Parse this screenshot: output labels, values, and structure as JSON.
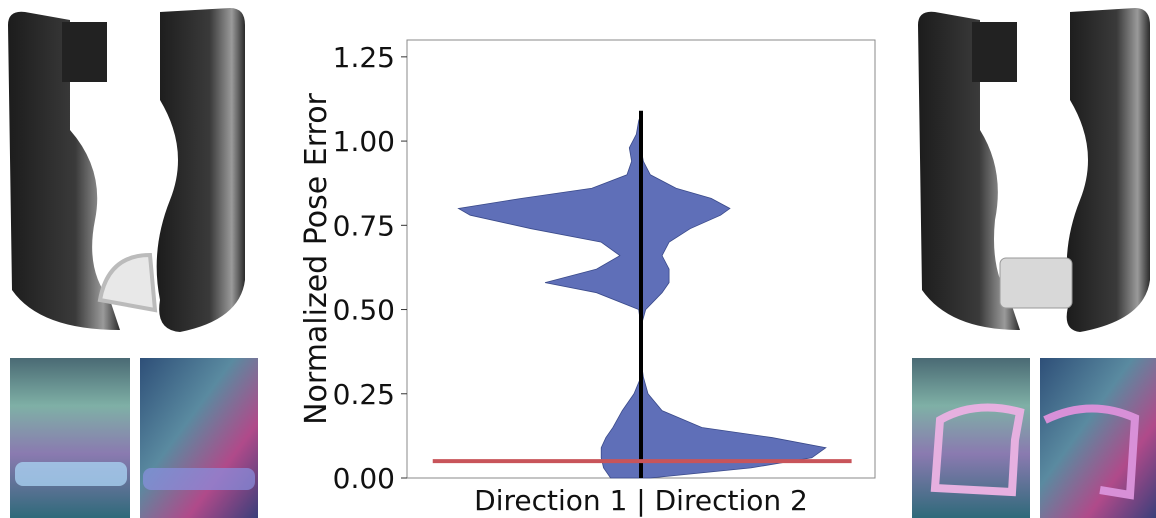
{
  "chart_data": {
    "type": "violin",
    "ylabel": "Normalized Pose Error",
    "xlabel": "Direction 1 | Direction 2",
    "ylim": [
      0,
      1.3
    ],
    "yticks": [
      {
        "value": 0,
        "label": "0.00"
      },
      {
        "value": 0.25,
        "label": "0.25"
      },
      {
        "value": 0.5,
        "label": "0.50"
      },
      {
        "value": 0.75,
        "label": "0.75"
      },
      {
        "value": 1,
        "label": "1.00"
      },
      {
        "value": 1.25,
        "label": "1.25"
      }
    ],
    "xlim": [
      -1,
      1
    ],
    "violin": {
      "color": "#5f6fb8",
      "y": [
        0,
        0.03,
        0.06,
        0.09,
        0.12,
        0.15,
        0.2,
        0.25,
        0.3,
        0.35,
        0.45,
        0.5,
        0.55,
        0.58,
        0.62,
        0.66,
        0.7,
        0.74,
        0.78,
        0.8,
        0.83,
        0.86,
        0.9,
        0.94,
        0.98,
        1.02,
        1.06,
        1.08
      ],
      "left": [
        0.13,
        0.16,
        0.17,
        0.17,
        0.15,
        0.12,
        0.08,
        0.03,
        0,
        0,
        0,
        0.01,
        0.19,
        0.41,
        0.19,
        0.09,
        0.17,
        0.47,
        0.73,
        0.78,
        0.51,
        0.21,
        0.06,
        0.04,
        0.05,
        0.02,
        0.01,
        0
      ],
      "right": [
        0.04,
        0.47,
        0.73,
        0.79,
        0.56,
        0.26,
        0.09,
        0.03,
        0.01,
        0,
        0,
        0.02,
        0.09,
        0.12,
        0.12,
        0.09,
        0.12,
        0.21,
        0.34,
        0.38,
        0.3,
        0.15,
        0.04,
        0.01,
        0,
        0,
        0,
        0
      ]
    },
    "center_line": {
      "range": [
        0,
        1.09
      ],
      "color": "#000000"
    },
    "reference_line": {
      "value": 0.05,
      "span": [
        -0.89,
        0.9
      ],
      "color": "#c8545a"
    }
  }
}
